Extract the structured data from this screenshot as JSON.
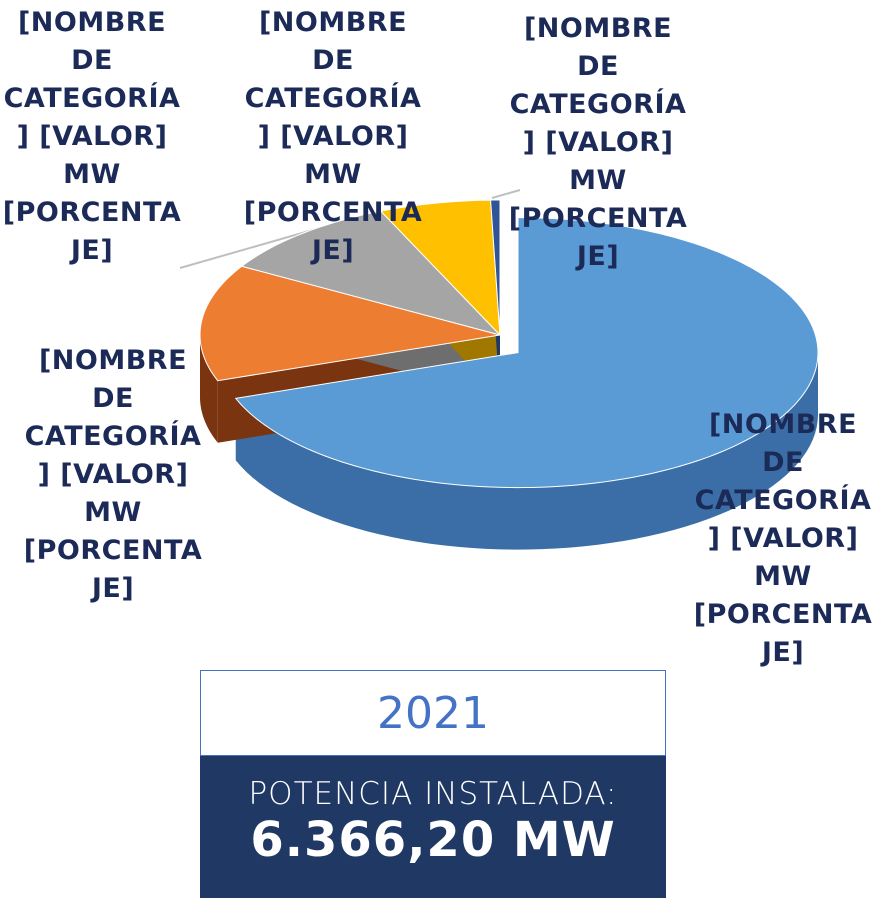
{
  "chart_data": {
    "type": "pie3d",
    "values": [
      69.5,
      14,
      10,
      6,
      0.5
    ],
    "colors": [
      "#5b9bd5",
      "#ed7d31",
      "#a5a5a5",
      "#ffc000",
      "#2f5597"
    ],
    "side_colors": [
      "#3b6ea6",
      "#7a3410",
      "#6e6e6e",
      "#a07800",
      "#1f3864"
    ],
    "data_labels": [
      "[NOMBRE DE CATEGORÍA] [VALOR] MW [PORCENTAJE]",
      "[NOMBRE DE CATEGORÍA] [VALOR] MW [PORCENTAJE]",
      "[NOMBRE DE CATEGORÍA] [VALOR] MW [PORCENTAJE]",
      "[NOMBRE DE CATEGORÍA] [VALOR] MW [PORCENTAJE]",
      "[NOMBRE DE CATEGORÍA] [VALOR] MW [PORCENTAJE]"
    ]
  },
  "summary": {
    "year": "2021",
    "label": "POTENCIA INSTALADA:",
    "value": "6.366,20 MW"
  }
}
